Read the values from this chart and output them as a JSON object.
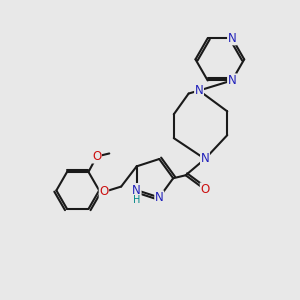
{
  "bg_color": "#e8e8e8",
  "bond_color": "#1a1a1a",
  "N_color": "#2222bb",
  "O_color": "#cc1111",
  "H_color": "#008888",
  "bond_width": 1.5,
  "figsize": [
    3.0,
    3.0
  ],
  "dpi": 100,
  "xlim": [
    0,
    10
  ],
  "ylim": [
    0,
    10
  ]
}
